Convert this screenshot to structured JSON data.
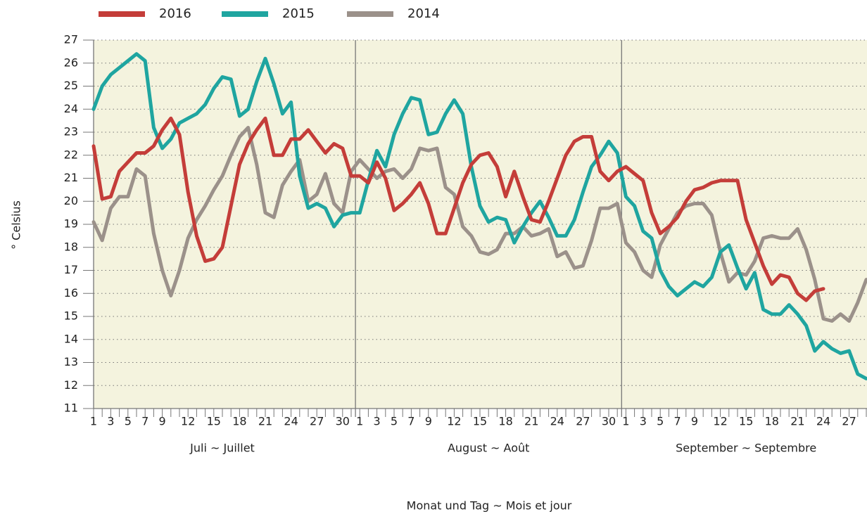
{
  "chart_data": {
    "type": "line",
    "y_label": "° Celsius",
    "x_label": "Monat und Tag ~ Mois et jour",
    "months": [
      "Juli ~ Juillet",
      "August ~ Août",
      "September ~ Septembre"
    ],
    "categories": [
      "1",
      null,
      "3",
      null,
      "5",
      null,
      "7",
      null,
      "9",
      null,
      null,
      "12",
      null,
      null,
      "15",
      null,
      null,
      "18",
      null,
      null,
      "21",
      null,
      null,
      "24",
      null,
      null,
      "27",
      null,
      null,
      "30",
      null,
      "1",
      null,
      "3",
      null,
      "5",
      null,
      "7",
      null,
      "9",
      null,
      null,
      "12",
      null,
      null,
      "15",
      null,
      null,
      "18",
      null,
      null,
      "21",
      null,
      null,
      "24",
      null,
      null,
      "27",
      null,
      null,
      "30",
      null,
      "1",
      null,
      "3",
      null,
      "5",
      null,
      "7",
      null,
      "9",
      null,
      null,
      "12",
      null,
      null,
      "15",
      null,
      null,
      "18",
      null,
      null,
      "21",
      null,
      null,
      "24",
      null,
      null,
      "27",
      null,
      null
    ],
    "series": [
      {
        "name": "2016",
        "color": "#c43d39",
        "values": [
          22.4,
          20.1,
          20.2,
          21.3,
          21.7,
          22.1,
          22.1,
          22.4,
          23.1,
          23.6,
          22.9,
          20.4,
          18.5,
          17.4,
          17.5,
          18.0,
          19.8,
          21.6,
          22.5,
          23.1,
          23.6,
          22.0,
          22.0,
          22.7,
          22.7,
          23.1,
          22.6,
          22.1,
          22.5,
          22.3,
          21.1,
          21.1,
          20.8,
          21.7,
          21.0,
          19.6,
          19.9,
          20.3,
          20.8,
          19.9,
          18.6,
          18.6,
          19.7,
          20.8,
          21.6,
          22.0,
          22.1,
          21.5,
          20.2,
          21.3,
          20.2,
          19.2,
          19.1,
          20.0,
          21.0,
          22.0,
          22.6,
          22.8,
          22.8,
          21.3,
          20.9,
          21.3,
          21.5,
          21.2,
          20.9,
          19.5,
          18.6,
          18.9,
          19.3,
          20.0,
          20.5,
          20.6,
          20.8,
          20.9,
          20.9,
          20.9,
          19.2,
          18.2,
          17.2,
          16.4,
          16.8,
          16.7,
          16.0,
          15.7,
          16.1,
          16.2,
          null,
          null,
          null,
          null,
          null
        ]
      },
      {
        "name": "2015",
        "color": "#1fa5a0",
        "values": [
          24.0,
          25.0,
          25.5,
          25.8,
          26.1,
          26.4,
          26.1,
          23.2,
          22.3,
          22.7,
          23.4,
          23.6,
          23.8,
          24.2,
          24.9,
          25.4,
          25.3,
          23.7,
          24.0,
          25.2,
          26.2,
          25.1,
          23.8,
          24.3,
          21.1,
          19.7,
          19.9,
          19.7,
          18.9,
          19.4,
          19.5,
          19.5,
          20.9,
          22.2,
          21.5,
          22.9,
          23.8,
          24.5,
          24.4,
          22.9,
          23.0,
          23.8,
          24.4,
          23.8,
          21.5,
          19.8,
          19.1,
          19.3,
          19.2,
          18.2,
          18.9,
          19.5,
          20.0,
          19.3,
          18.5,
          18.5,
          19.2,
          20.4,
          21.5,
          22.0,
          22.6,
          22.1,
          20.2,
          19.8,
          18.7,
          18.4,
          17.0,
          16.3,
          15.9,
          16.2,
          16.5,
          16.3,
          16.7,
          17.8,
          18.1,
          17.1,
          16.2,
          16.9,
          15.3,
          15.1,
          15.1,
          15.5,
          15.1,
          14.6,
          13.5,
          13.9,
          13.6,
          13.4,
          13.5,
          12.5,
          12.3
        ]
      },
      {
        "name": "2014",
        "color": "#9b918a",
        "values": [
          19.1,
          18.3,
          19.7,
          20.2,
          20.2,
          21.4,
          21.1,
          18.6,
          17.0,
          15.9,
          17.0,
          18.4,
          19.2,
          19.8,
          20.5,
          21.1,
          22.0,
          22.8,
          23.2,
          21.6,
          19.5,
          19.3,
          20.7,
          21.3,
          21.8,
          20.0,
          20.3,
          21.2,
          19.9,
          19.5,
          21.3,
          21.8,
          21.4,
          21.0,
          21.3,
          21.4,
          21.0,
          21.4,
          22.3,
          22.2,
          22.3,
          20.6,
          20.3,
          18.9,
          18.5,
          17.8,
          17.7,
          17.9,
          18.6,
          18.6,
          18.9,
          18.5,
          18.6,
          18.8,
          17.6,
          17.8,
          17.1,
          17.2,
          18.3,
          19.7,
          19.7,
          19.9,
          18.2,
          17.8,
          17.0,
          16.7,
          18.1,
          18.8,
          19.5,
          19.8,
          19.9,
          19.9,
          19.4,
          17.8,
          16.5,
          16.9,
          16.8,
          17.4,
          18.4,
          18.5,
          18.4,
          18.4,
          18.8,
          17.9,
          16.6,
          14.9,
          14.8,
          15.1,
          14.8,
          15.6,
          16.6
        ]
      }
    ],
    "ylim": [
      11,
      27
    ],
    "yticks": [
      11,
      12,
      13,
      14,
      15,
      16,
      17,
      18,
      19,
      20,
      21,
      22,
      23,
      24,
      25,
      26,
      27
    ],
    "grid": true,
    "legend": "top"
  }
}
